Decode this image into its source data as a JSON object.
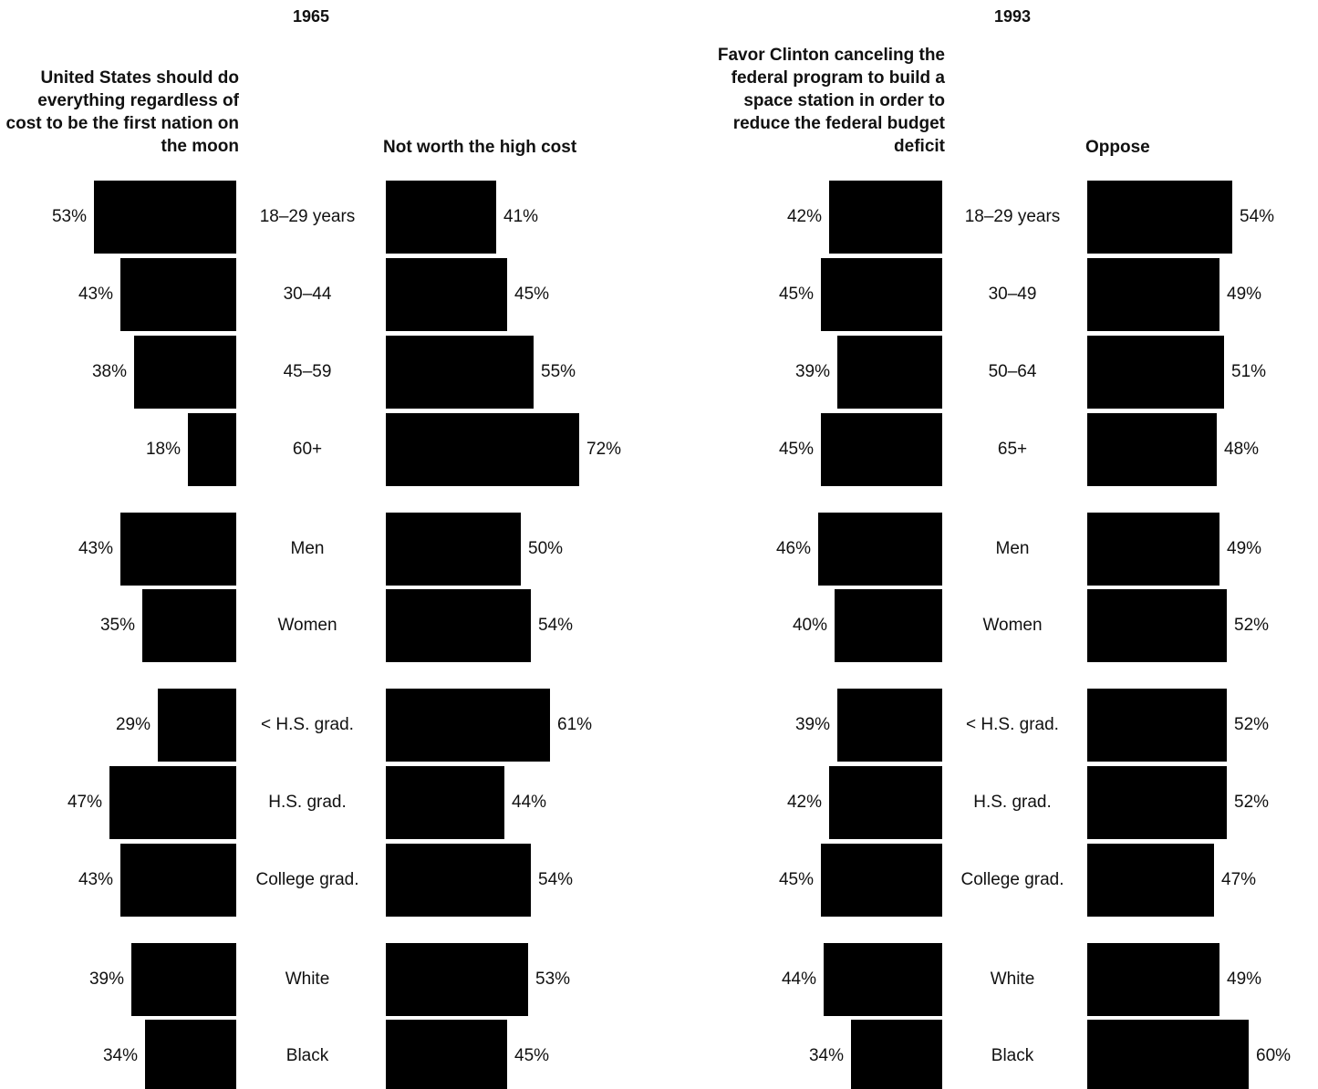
{
  "chart_data": [
    {
      "type": "bar",
      "title": "1965",
      "left_header": "United States should do everything regardless of cost to be the first nation on the moon",
      "right_header": "Not worth the high cost",
      "categories": [
        "18–29 years",
        "30–44",
        "45–59",
        "60+",
        "Men",
        "Women",
        "< H.S. grad.",
        "H.S. grad.",
        "College grad.",
        "White",
        "Black"
      ],
      "series": [
        {
          "name": "United States should do everything regardless of cost to be the first nation on the moon",
          "values": [
            53,
            43,
            38,
            18,
            43,
            35,
            29,
            47,
            43,
            39,
            34
          ],
          "labels": [
            "53%",
            "43%",
            "38%",
            "18%",
            "43%",
            "35%",
            "29%",
            "47%",
            "43%",
            "39%",
            "34%"
          ]
        },
        {
          "name": "Not worth the high cost",
          "values": [
            41,
            45,
            55,
            72,
            50,
            54,
            61,
            44,
            54,
            53,
            45
          ],
          "labels": [
            "41%",
            "45%",
            "55%",
            "72%",
            "50%",
            "54%",
            "61%",
            "44%",
            "54%",
            "53%",
            "45%"
          ]
        }
      ],
      "bar_color": "#000000",
      "unit": "%"
    },
    {
      "type": "bar",
      "title": "1993",
      "left_header": "Favor Clinton canceling the federal program to build a space station in order to reduce the federal budget deficit",
      "right_header": "Oppose",
      "categories": [
        "18–29 years",
        "30–49",
        "50–64",
        "65+",
        "Men",
        "Women",
        "< H.S. grad.",
        "H.S. grad.",
        "College grad.",
        "White",
        "Black"
      ],
      "series": [
        {
          "name": "Favor Clinton canceling the federal program to build a space station in order to reduce the federal budget deficit",
          "values": [
            42,
            45,
            39,
            45,
            46,
            40,
            39,
            42,
            45,
            44,
            34
          ],
          "labels": [
            "42%",
            "45%",
            "39%",
            "45%",
            "46%",
            "40%",
            "39%",
            "42%",
            "45%",
            "44%",
            "34%"
          ]
        },
        {
          "name": "Oppose",
          "values": [
            54,
            49,
            51,
            48,
            49,
            52,
            52,
            52,
            47,
            49,
            60
          ],
          "labels": [
            "54%",
            "49%",
            "51%",
            "48%",
            "49%",
            "52%",
            "52%",
            "52%",
            "47%",
            "49%",
            "60%"
          ]
        }
      ],
      "bar_color": "#000000",
      "unit": "%"
    }
  ]
}
